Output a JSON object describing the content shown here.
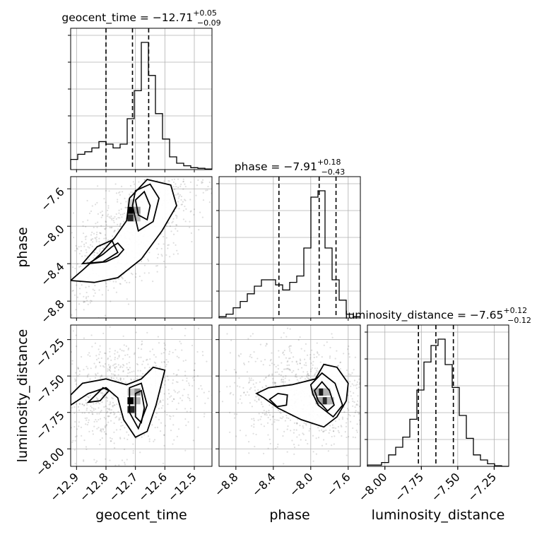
{
  "chart_data": {
    "type": "corner",
    "parameters": [
      {
        "name": "geocent_time",
        "label": "geocent_time",
        "median": "−12.71",
        "plus": "+0.05",
        "minus": "−0.09",
        "title_prefix": "geocent_time = ",
        "range": [
          -12.92,
          -12.44
        ],
        "ticks": [
          -12.9,
          -12.8,
          -12.7,
          -12.6,
          -12.5
        ],
        "tick_labels": [
          "−12.9",
          "−12.8",
          "−12.7",
          "−12.6",
          "−12.5"
        ],
        "quantiles": [
          -12.8,
          -12.71,
          -12.655
        ]
      },
      {
        "name": "phase",
        "label": "phase",
        "median": "−7.91",
        "plus": "+0.18",
        "minus": "−0.43",
        "title_prefix": "phase = ",
        "range": [
          -8.98,
          -7.47
        ],
        "ticks": [
          -8.8,
          -8.4,
          -8.0,
          -7.6
        ],
        "tick_labels": [
          "−8.8",
          "−8.4",
          "−8.0",
          "−7.6"
        ],
        "quantiles": [
          -8.34,
          -7.91,
          -7.73
        ]
      },
      {
        "name": "luminosity_distance",
        "label": "luminosity_distance",
        "median": "−7.65",
        "plus": "+0.12",
        "minus": "−0.12",
        "title_prefix": "luminosity_distance = ",
        "range": [
          -8.12,
          -7.15
        ],
        "ticks": [
          -8.0,
          -7.75,
          -7.5,
          -7.25
        ],
        "tick_labels": [
          "−8.00",
          "−7.75",
          "−7.50",
          "−7.25"
        ],
        "quantiles": [
          -7.77,
          -7.65,
          -7.53
        ]
      }
    ],
    "histograms": [
      {
        "param": "geocent_time",
        "edges_start": -12.92,
        "bin_width": 0.024,
        "counts": [
          0.08,
          0.12,
          0.14,
          0.17,
          0.22,
          0.2,
          0.17,
          0.2,
          0.4,
          0.62,
          1.0,
          0.74,
          0.44,
          0.24,
          0.1,
          0.05,
          0.03,
          0.015,
          0.01,
          0.005
        ]
      },
      {
        "param": "phase",
        "edges_start": -8.98,
        "bin_width": 0.0755,
        "counts": [
          0.01,
          0.03,
          0.08,
          0.13,
          0.19,
          0.25,
          0.3,
          0.3,
          0.26,
          0.22,
          0.28,
          0.33,
          0.55,
          0.95,
          1.0,
          0.55,
          0.3,
          0.14,
          0.03,
          0.01
        ]
      },
      {
        "param": "luminosity_distance",
        "edges_start": -8.12,
        "bin_width": 0.0485,
        "counts": [
          0.01,
          0.01,
          0.03,
          0.09,
          0.15,
          0.23,
          0.37,
          0.6,
          0.82,
          0.95,
          1.0,
          0.8,
          0.62,
          0.4,
          0.22,
          0.09,
          0.05,
          0.02,
          0.005,
          0
        ]
      }
    ],
    "contours": [
      {
        "x_param": "geocent_time",
        "y_param": "phase",
        "levels": [
          [
            [
              -12.92,
              -8.58
            ],
            [
              -12.88,
              -8.47
            ],
            [
              -12.82,
              -8.3
            ],
            [
              -12.77,
              -8.12
            ],
            [
              -12.73,
              -7.94
            ],
            [
              -12.72,
              -7.7
            ],
            [
              -12.66,
              -7.5
            ],
            [
              -12.58,
              -7.56
            ],
            [
              -12.56,
              -7.78
            ],
            [
              -12.61,
              -8.05
            ],
            [
              -12.68,
              -8.35
            ],
            [
              -12.76,
              -8.55
            ],
            [
              -12.84,
              -8.6
            ]
          ],
          [
            [
              -12.88,
              -8.4
            ],
            [
              -12.83,
              -8.22
            ],
            [
              -12.78,
              -8.15
            ],
            [
              -12.76,
              -8.28
            ],
            [
              -12.81,
              -8.38
            ]
          ],
          [
            [
              -12.71,
              -7.78
            ],
            [
              -12.7,
              -7.62
            ],
            [
              -12.65,
              -7.55
            ],
            [
              -12.62,
              -7.7
            ],
            [
              -12.64,
              -7.95
            ],
            [
              -12.69,
              -8.05
            ]
          ],
          [
            [
              -12.86,
              -8.4
            ],
            [
              -12.81,
              -8.3
            ],
            [
              -12.78,
              -8.22
            ],
            [
              -12.76,
              -8.18
            ],
            [
              -12.74,
              -8.25
            ],
            [
              -12.76,
              -8.32
            ],
            [
              -12.8,
              -8.38
            ]
          ],
          [
            [
              -12.69,
              -7.88
            ],
            [
              -12.7,
              -7.72
            ],
            [
              -12.67,
              -7.63
            ],
            [
              -12.65,
              -7.78
            ],
            [
              -12.66,
              -7.93
            ]
          ]
        ],
        "cells": [
          {
            "x": -12.715,
            "y": -7.83,
            "d": 1.0
          },
          {
            "x": -12.715,
            "y": -7.91,
            "d": 0.85
          },
          {
            "x": -12.695,
            "y": -7.83,
            "d": 0.4
          },
          {
            "x": -12.695,
            "y": -7.91,
            "d": 0.25
          },
          {
            "x": -12.715,
            "y": -7.75,
            "d": 0.15
          }
        ]
      },
      {
        "x_param": "geocent_time",
        "y_param": "luminosity_distance",
        "levels": [
          [
            [
              -12.92,
              -7.7
            ],
            [
              -12.86,
              -7.62
            ],
            [
              -12.8,
              -7.58
            ],
            [
              -12.76,
              -7.65
            ],
            [
              -12.74,
              -7.8
            ],
            [
              -12.7,
              -7.92
            ],
            [
              -12.66,
              -7.88
            ],
            [
              -12.63,
              -7.7
            ],
            [
              -12.6,
              -7.46
            ],
            [
              -12.64,
              -7.44
            ],
            [
              -12.68,
              -7.52
            ],
            [
              -12.73,
              -7.56
            ],
            [
              -12.8,
              -7.52
            ],
            [
              -12.88,
              -7.55
            ],
            [
              -12.92,
              -7.63
            ]
          ],
          [
            [
              -12.86,
              -7.68
            ],
            [
              -12.81,
              -7.58
            ],
            [
              -12.79,
              -7.6
            ],
            [
              -12.82,
              -7.67
            ]
          ],
          [
            [
              -12.72,
              -7.75
            ],
            [
              -12.72,
              -7.58
            ],
            [
              -12.68,
              -7.55
            ],
            [
              -12.66,
              -7.7
            ],
            [
              -12.69,
              -7.86
            ]
          ],
          [
            [
              -12.7,
              -7.78
            ],
            [
              -12.7,
              -7.62
            ],
            [
              -12.68,
              -7.6
            ],
            [
              -12.67,
              -7.72
            ],
            [
              -12.68,
              -7.82
            ]
          ]
        ],
        "cells": [
          {
            "x": -12.715,
            "y": -7.67,
            "d": 1.0
          },
          {
            "x": -12.715,
            "y": -7.73,
            "d": 0.85
          },
          {
            "x": -12.695,
            "y": -7.61,
            "d": 0.45
          },
          {
            "x": -12.695,
            "y": -7.67,
            "d": 0.3
          },
          {
            "x": -12.715,
            "y": -7.61,
            "d": 0.2
          }
        ]
      },
      {
        "x_param": "phase",
        "y_param": "luminosity_distance",
        "levels": [
          [
            [
              -8.58,
              -7.62
            ],
            [
              -8.5,
              -7.65
            ],
            [
              -8.35,
              -7.72
            ],
            [
              -8.1,
              -7.8
            ],
            [
              -7.86,
              -7.85
            ],
            [
              -7.72,
              -7.78
            ],
            [
              -7.62,
              -7.67
            ],
            [
              -7.6,
              -7.55
            ],
            [
              -7.72,
              -7.44
            ],
            [
              -7.86,
              -7.42
            ],
            [
              -7.95,
              -7.52
            ],
            [
              -8.2,
              -7.56
            ],
            [
              -8.45,
              -7.58
            ]
          ],
          [
            [
              -8.44,
              -7.66
            ],
            [
              -8.35,
              -7.62
            ],
            [
              -8.25,
              -7.63
            ],
            [
              -8.26,
              -7.7
            ],
            [
              -8.36,
              -7.71
            ]
          ],
          [
            [
              -8.0,
              -7.56
            ],
            [
              -7.88,
              -7.48
            ],
            [
              -7.74,
              -7.55
            ],
            [
              -7.66,
              -7.7
            ],
            [
              -7.76,
              -7.78
            ],
            [
              -7.92,
              -7.7
            ],
            [
              -7.98,
              -7.62
            ]
          ],
          [
            [
              -7.96,
              -7.6
            ],
            [
              -7.88,
              -7.54
            ],
            [
              -7.8,
              -7.6
            ],
            [
              -7.75,
              -7.7
            ],
            [
              -7.82,
              -7.74
            ],
            [
              -7.92,
              -7.67
            ]
          ]
        ],
        "cells": [
          {
            "x": -7.91,
            "y": -7.61,
            "d": 1.0
          },
          {
            "x": -7.87,
            "y": -7.61,
            "d": 0.9
          },
          {
            "x": -7.87,
            "y": -7.67,
            "d": 0.8
          },
          {
            "x": -7.83,
            "y": -7.67,
            "d": 0.85
          },
          {
            "x": -7.91,
            "y": -7.67,
            "d": 0.35
          },
          {
            "x": -7.95,
            "y": -7.61,
            "d": 0.3
          },
          {
            "x": -7.83,
            "y": -7.61,
            "d": 0.3
          },
          {
            "x": -7.79,
            "y": -7.67,
            "d": 0.3
          }
        ]
      }
    ],
    "scatter_clouds": [
      {
        "x_param": "geocent_time",
        "y_param": "phase",
        "corr": 0.75
      },
      {
        "x_param": "geocent_time",
        "y_param": "luminosity_distance",
        "corr": 0.15
      },
      {
        "x_param": "phase",
        "y_param": "luminosity_distance",
        "corr": -0.1
      }
    ]
  }
}
